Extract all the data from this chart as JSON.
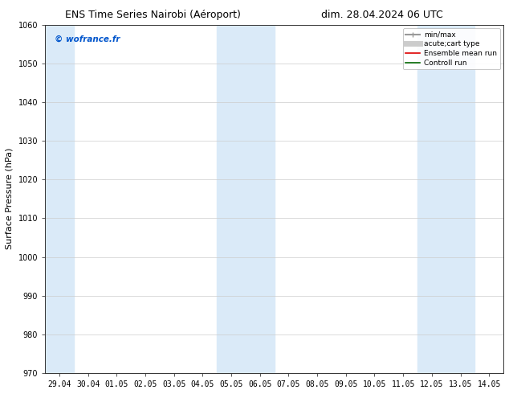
{
  "title_left": "ENS Time Series Nairobi (Aéroport)",
  "title_right": "dim. 28.04.2024 06 UTC",
  "ylabel": "Surface Pressure (hPa)",
  "ylim": [
    970,
    1060
  ],
  "yticks": [
    970,
    980,
    990,
    1000,
    1010,
    1020,
    1030,
    1040,
    1050,
    1060
  ],
  "xtick_labels": [
    "29.04",
    "30.04",
    "01.05",
    "02.05",
    "03.05",
    "04.05",
    "05.05",
    "06.05",
    "07.05",
    "08.05",
    "09.05",
    "10.05",
    "11.05",
    "12.05",
    "13.05",
    "14.05"
  ],
  "watermark": "© wofrance.fr",
  "watermark_color": "#0055cc",
  "shaded_bands": [
    {
      "xstart": -0.5,
      "xend": 0.5,
      "color": "#daeaf8"
    },
    {
      "xstart": 5.5,
      "xend": 7.5,
      "color": "#daeaf8"
    },
    {
      "xstart": 12.5,
      "xend": 14.5,
      "color": "#daeaf8"
    }
  ],
  "legend_entries": [
    {
      "label": "min/max",
      "color": "#999999",
      "lw": 1.5,
      "style": "bar"
    },
    {
      "label": "acute;cart type",
      "color": "#cccccc",
      "lw": 5,
      "style": "line"
    },
    {
      "label": "Ensemble mean run",
      "color": "#dd0000",
      "lw": 1.2,
      "style": "line"
    },
    {
      "label": "Controll run",
      "color": "#006600",
      "lw": 1.2,
      "style": "line"
    }
  ],
  "bg_color": "#ffffff",
  "plot_bg_color": "#ffffff",
  "grid_color": "#cccccc",
  "title_fontsize": 9,
  "tick_fontsize": 7,
  "ylabel_fontsize": 8,
  "watermark_fontsize": 7.5,
  "legend_fontsize": 6.5
}
